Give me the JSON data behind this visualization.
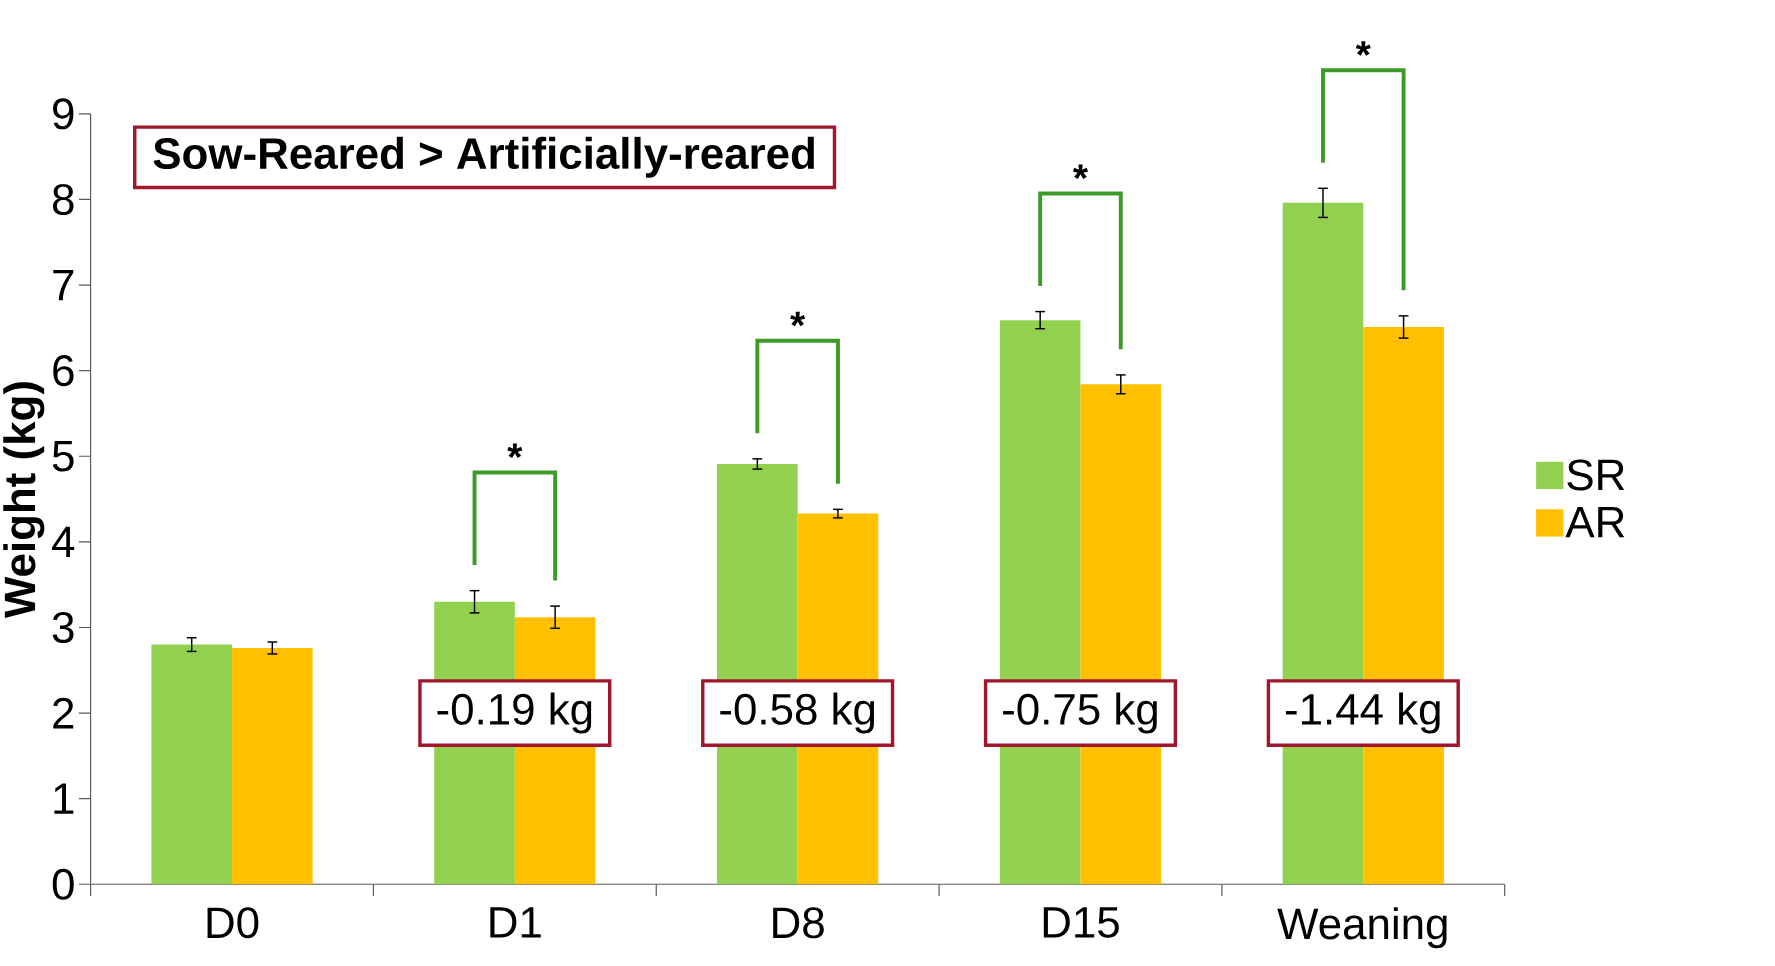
{
  "chart_data": {
    "type": "bar",
    "title": "Sow-Reared > Artificially-reared",
    "ylabel": "Weight (kg)",
    "categories": [
      "D0",
      "D1",
      "D8",
      "D15",
      "Weaning"
    ],
    "series": [
      {
        "name": "SR",
        "color": "#92d050",
        "values": [
          2.8,
          3.3,
          4.91,
          6.59,
          7.96
        ],
        "errors": [
          0.08,
          0.13,
          0.06,
          0.1,
          0.17
        ]
      },
      {
        "name": "AR",
        "color": "#ffc000",
        "values": [
          2.76,
          3.12,
          4.33,
          5.84,
          6.51
        ],
        "errors": [
          0.07,
          0.13,
          0.05,
          0.11,
          0.13
        ]
      }
    ],
    "ylim": [
      0,
      9
    ],
    "yticks": [
      0,
      1,
      2,
      3,
      4,
      5,
      6,
      7,
      8,
      9
    ],
    "legend": "right",
    "annotations": [
      "*",
      "*",
      "*",
      "*",
      {
        "text": "-0.19 kg",
        "x": "D1",
        "y": 2
      },
      {
        "text": "-0.58 kg",
        "x": "D8",
        "y": 2
      },
      {
        "text": "-0.75 kg",
        "x": "D15",
        "y": 2
      },
      {
        "text": "-1.44 kg",
        "x": "Weaning",
        "y": 2
      }
    ]
  }
}
